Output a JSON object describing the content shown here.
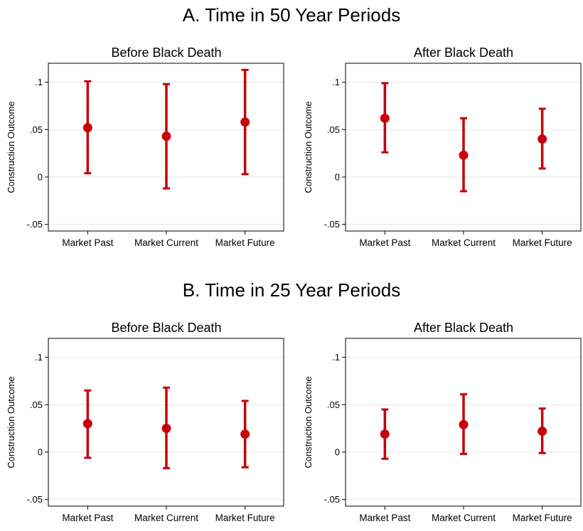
{
  "panels": [
    {
      "title": "A. Time in 50 Year Periods"
    },
    {
      "title": "B. Time in 25 Year Periods"
    }
  ],
  "chart_data": [
    {
      "type": "scatter",
      "panel": "A. Time in 50 Year Periods",
      "title": "Before Black Death",
      "xlabel": "",
      "ylabel": "Construction Outcome",
      "categories": [
        "Market Past",
        "Market Current",
        "Market Future"
      ],
      "values": [
        0.052,
        0.043,
        0.058
      ],
      "ci_low": [
        0.004,
        -0.012,
        0.003
      ],
      "ci_high": [
        0.101,
        0.098,
        0.113
      ],
      "yticks": [
        -0.05,
        0,
        0.05,
        0.1
      ],
      "ytick_labels": [
        "-.05",
        "0",
        ".05",
        ".1"
      ],
      "ylim": [
        -0.057,
        0.12
      ],
      "grid": true,
      "color": "#c8000a"
    },
    {
      "type": "scatter",
      "panel": "A. Time in 50 Year Periods",
      "title": "After Black Death",
      "xlabel": "",
      "ylabel": "Construction Outcome",
      "categories": [
        "Market Past",
        "Market Current",
        "Market Future"
      ],
      "values": [
        0.062,
        0.023,
        0.04
      ],
      "ci_low": [
        0.026,
        -0.015,
        0.009
      ],
      "ci_high": [
        0.099,
        0.062,
        0.072
      ],
      "yticks": [
        -0.05,
        0,
        0.05,
        0.1
      ],
      "ytick_labels": [
        "-.05",
        "0",
        ".05",
        ".1"
      ],
      "ylim": [
        -0.057,
        0.12
      ],
      "grid": true,
      "color": "#c8000a"
    },
    {
      "type": "scatter",
      "panel": "B. Time in 25 Year Periods",
      "title": "Before Black Death",
      "xlabel": "",
      "ylabel": "Construction Outcome",
      "categories": [
        "Market Past",
        "Market Current",
        "Market Future"
      ],
      "values": [
        0.03,
        0.025,
        0.019
      ],
      "ci_low": [
        -0.006,
        -0.017,
        -0.016
      ],
      "ci_high": [
        0.065,
        0.068,
        0.054
      ],
      "yticks": [
        -0.05,
        0,
        0.05,
        0.1
      ],
      "ytick_labels": [
        "-.05",
        "0",
        ".05",
        ".1"
      ],
      "ylim": [
        -0.057,
        0.12
      ],
      "grid": true,
      "color": "#c8000a"
    },
    {
      "type": "scatter",
      "panel": "B. Time in 25 Year Periods",
      "title": "After Black Death",
      "xlabel": "",
      "ylabel": "Construction Outcome",
      "categories": [
        "Market Past",
        "Market Current",
        "Market Future"
      ],
      "values": [
        0.019,
        0.029,
        0.022
      ],
      "ci_low": [
        -0.007,
        -0.002,
        -0.001
      ],
      "ci_high": [
        0.045,
        0.061,
        0.046
      ],
      "yticks": [
        -0.05,
        0,
        0.05,
        0.1
      ],
      "ytick_labels": [
        "-.05",
        "0",
        ".05",
        ".1"
      ],
      "ylim": [
        -0.057,
        0.12
      ],
      "grid": true,
      "color": "#c8000a"
    }
  ]
}
